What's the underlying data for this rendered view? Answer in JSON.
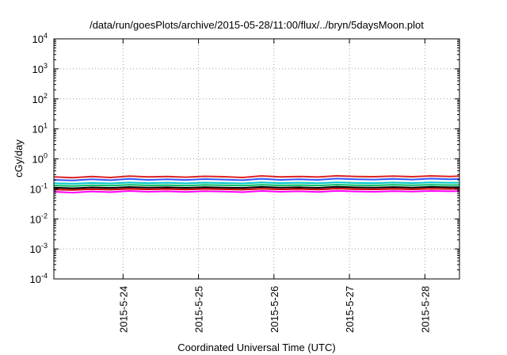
{
  "chart_data": {
    "type": "line",
    "title": "/data/run/goesPlots/archive/2015-05-28/11:00/flux/../bryn/5daysMoon.plot",
    "xlabel": "Coordinated Universal Time (UTC)",
    "ylabel": "cGy/day",
    "yscale": "log",
    "ylim": [
      0.0001,
      10000
    ],
    "xlim": [
      "2015-05-23 02:00",
      "2015-05-28 11:00"
    ],
    "grid": true,
    "legend": "none",
    "x_ticks": [
      {
        "label": "2015-5-24",
        "date": "2015-05-24"
      },
      {
        "label": "2015-5-25",
        "date": "2015-05-25"
      },
      {
        "label": "2015-5-26",
        "date": "2015-05-26"
      },
      {
        "label": "2015-5-27",
        "date": "2015-05-27"
      },
      {
        "label": "2015-5-28",
        "date": "2015-05-28"
      }
    ],
    "y_ticks": [
      {
        "base": "10",
        "exp": "-4"
      },
      {
        "base": "10",
        "exp": "-3"
      },
      {
        "base": "10",
        "exp": "-2"
      },
      {
        "base": "10",
        "exp": "-1"
      },
      {
        "base": "10",
        "exp": "0"
      },
      {
        "base": "10",
        "exp": "1"
      },
      {
        "base": "10",
        "exp": "2"
      },
      {
        "base": "10",
        "exp": "3"
      },
      {
        "base": "10",
        "exp": "4"
      }
    ],
    "x": [
      "2015-05-23 02:00",
      "2015-05-23 08:00",
      "2015-05-23 14:00",
      "2015-05-23 20:00",
      "2015-05-24 02:00",
      "2015-05-24 08:00",
      "2015-05-24 14:00",
      "2015-05-24 20:00",
      "2015-05-25 02:00",
      "2015-05-25 08:00",
      "2015-05-25 14:00",
      "2015-05-25 20:00",
      "2015-05-26 02:00",
      "2015-05-26 08:00",
      "2015-05-26 14:00",
      "2015-05-26 20:00",
      "2015-05-27 02:00",
      "2015-05-27 08:00",
      "2015-05-27 14:00",
      "2015-05-27 20:00",
      "2015-05-28 02:00",
      "2015-05-28 08:00",
      "2015-05-28 11:00"
    ],
    "series": [
      {
        "color": "#ff00ff",
        "values": [
          0.08,
          0.075,
          0.082,
          0.078,
          0.085,
          0.08,
          0.083,
          0.079,
          0.084,
          0.081,
          0.078,
          0.085,
          0.08,
          0.083,
          0.079,
          0.086,
          0.082,
          0.08,
          0.084,
          0.081,
          0.085,
          0.083,
          0.084
        ]
      },
      {
        "color": "#cc0000",
        "values": [
          0.095,
          0.092,
          0.098,
          0.094,
          0.1,
          0.096,
          0.099,
          0.095,
          0.1,
          0.097,
          0.094,
          0.101,
          0.096,
          0.099,
          0.095,
          0.102,
          0.098,
          0.096,
          0.1,
          0.097,
          0.101,
          0.099,
          0.1
        ]
      },
      {
        "color": "#000000",
        "values": [
          0.11,
          0.105,
          0.112,
          0.108,
          0.115,
          0.11,
          0.113,
          0.109,
          0.114,
          0.111,
          0.108,
          0.116,
          0.11,
          0.113,
          0.109,
          0.117,
          0.112,
          0.11,
          0.115,
          0.111,
          0.116,
          0.113,
          0.114
        ]
      },
      {
        "color": "#00bb66",
        "values": [
          0.13,
          0.125,
          0.133,
          0.128,
          0.136,
          0.131,
          0.134,
          0.129,
          0.135,
          0.132,
          0.128,
          0.137,
          0.131,
          0.134,
          0.13,
          0.138,
          0.133,
          0.131,
          0.136,
          0.132,
          0.137,
          0.134,
          0.135
        ]
      },
      {
        "color": "#00c8c8",
        "values": [
          0.155,
          0.148,
          0.158,
          0.152,
          0.162,
          0.156,
          0.16,
          0.153,
          0.161,
          0.157,
          0.152,
          0.163,
          0.156,
          0.16,
          0.154,
          0.165,
          0.158,
          0.156,
          0.162,
          0.157,
          0.164,
          0.16,
          0.161
        ]
      },
      {
        "color": "#3355ff",
        "values": [
          0.2,
          0.19,
          0.21,
          0.195,
          0.215,
          0.2,
          0.21,
          0.198,
          0.212,
          0.205,
          0.195,
          0.218,
          0.2,
          0.21,
          0.2,
          0.22,
          0.21,
          0.205,
          0.215,
          0.205,
          0.22,
          0.21,
          0.215
        ]
      },
      {
        "color": "#dd2222",
        "values": [
          0.25,
          0.235,
          0.26,
          0.24,
          0.265,
          0.25,
          0.26,
          0.245,
          0.262,
          0.255,
          0.24,
          0.27,
          0.25,
          0.26,
          0.248,
          0.272,
          0.26,
          0.255,
          0.265,
          0.255,
          0.27,
          0.26,
          0.265
        ]
      }
    ]
  }
}
